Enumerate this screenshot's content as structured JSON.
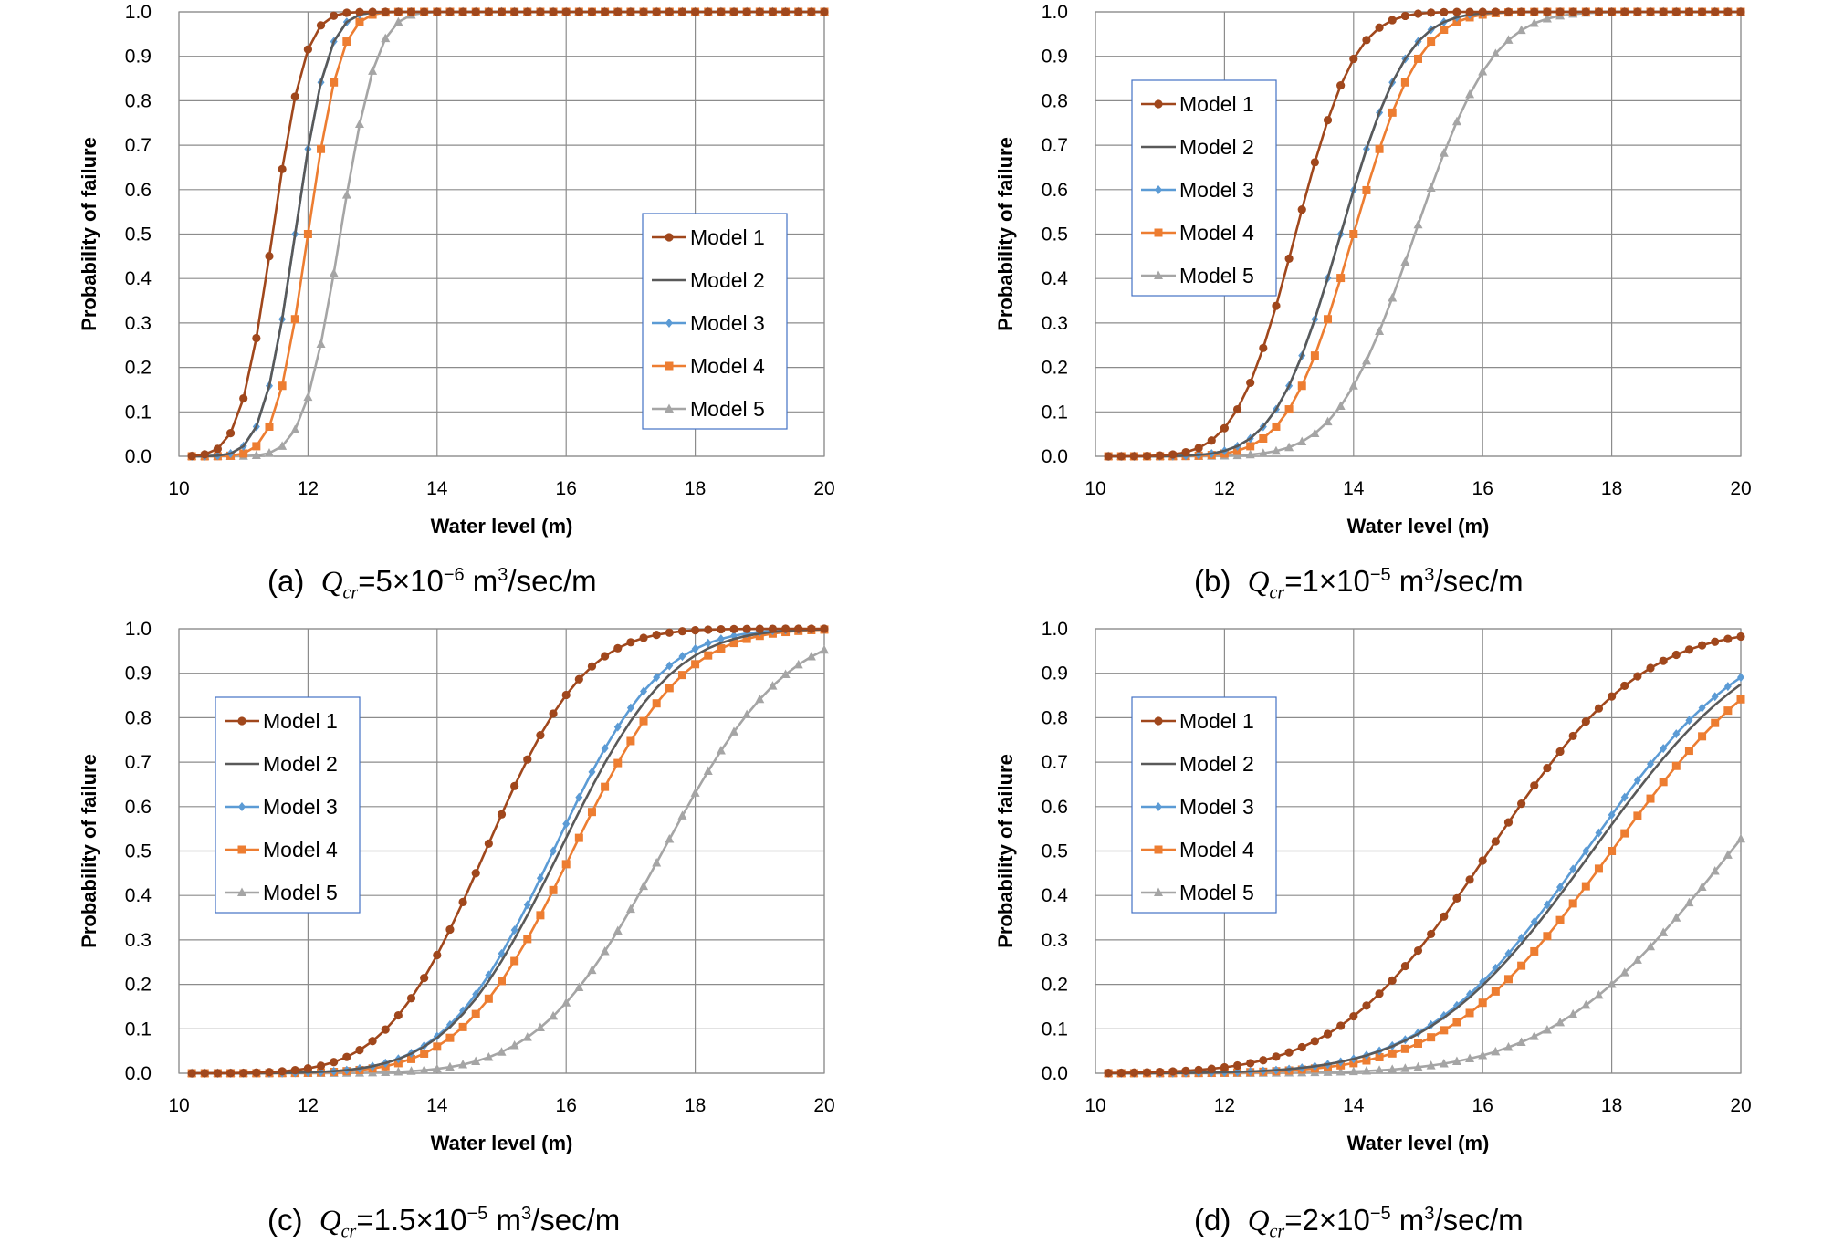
{
  "chart_data": [
    {
      "type": "line",
      "panel": "a",
      "caption": {
        "letter": "(a)",
        "q": "Q",
        "sub": "cr",
        "coef": "=5×10",
        "exp": "−6",
        "unit_base": " m",
        "unit_exp": "3",
        "unit_rest": "/sec/m"
      },
      "xlabel": "Water level (m)",
      "ylabel": "Probability of failure",
      "xlim": [
        10,
        20
      ],
      "ylim": [
        0,
        1
      ],
      "xticks": [
        "10",
        "12",
        "14",
        "16",
        "18",
        "20"
      ],
      "yticks": [
        "0.0",
        "0.1",
        "0.2",
        "0.3",
        "0.4",
        "0.5",
        "0.6",
        "0.7",
        "0.8",
        "0.9",
        "1.0"
      ],
      "grid": true,
      "legend_position": "right-middle",
      "series": [
        {
          "name": "Model 1",
          "color": "#a0471c",
          "marker": "circle",
          "mu": 11.45,
          "sigma": 0.4
        },
        {
          "name": "Model 2",
          "color": "#595959",
          "marker": "none",
          "mu": 11.8,
          "sigma": 0.4
        },
        {
          "name": "Model 3",
          "color": "#5b9bd5",
          "marker": "diamond",
          "mu": 11.8,
          "sigma": 0.4
        },
        {
          "name": "Model 4",
          "color": "#ed7d31",
          "marker": "square",
          "mu": 12.0,
          "sigma": 0.4
        },
        {
          "name": "Model 5",
          "color": "#a5a5a5",
          "marker": "triangle",
          "mu": 12.5,
          "sigma": 0.45
        }
      ]
    },
    {
      "type": "line",
      "panel": "b",
      "caption": {
        "letter": "(b)",
        "q": "Q",
        "sub": "cr",
        "coef": "=1×10",
        "exp": "−5",
        "unit_base": " m",
        "unit_exp": "3",
        "unit_rest": "/sec/m"
      },
      "xlabel": "Water level (m)",
      "ylabel": "Probability of failure",
      "xlim": [
        10,
        20
      ],
      "ylim": [
        0,
        1
      ],
      "xticks": [
        "10",
        "12",
        "14",
        "16",
        "18",
        "20"
      ],
      "yticks": [
        "0.0",
        "0.1",
        "0.2",
        "0.3",
        "0.4",
        "0.5",
        "0.6",
        "0.7",
        "0.8",
        "0.9",
        "1.0"
      ],
      "grid": true,
      "legend_position": "top-left",
      "series": [
        {
          "name": "Model 1",
          "color": "#a0471c",
          "marker": "circle",
          "mu": 13.1,
          "sigma": 0.72
        },
        {
          "name": "Model 2",
          "color": "#595959",
          "marker": "none",
          "mu": 13.8,
          "sigma": 0.8
        },
        {
          "name": "Model 3",
          "color": "#5b9bd5",
          "marker": "diamond",
          "mu": 13.8,
          "sigma": 0.8
        },
        {
          "name": "Model 4",
          "color": "#ed7d31",
          "marker": "square",
          "mu": 14.0,
          "sigma": 0.8
        },
        {
          "name": "Model 5",
          "color": "#a5a5a5",
          "marker": "triangle",
          "mu": 14.95,
          "sigma": 0.95
        }
      ]
    },
    {
      "type": "line",
      "panel": "c",
      "caption": {
        "letter": "(c)",
        "q": "Q",
        "sub": "cr",
        "coef": "=1.5×10",
        "exp": "−5",
        "unit_base": " m",
        "unit_exp": "3",
        "unit_rest": "/sec/m"
      },
      "xlabel": "Water level (m)",
      "ylabel": "Probability of failure",
      "xlim": [
        10,
        20
      ],
      "ylim": [
        0,
        1
      ],
      "xticks": [
        "10",
        "12",
        "14",
        "16",
        "18",
        "20"
      ],
      "yticks": [
        "0.0",
        "0.1",
        "0.2",
        "0.3",
        "0.4",
        "0.5",
        "0.6",
        "0.7",
        "0.8",
        "0.9",
        "1.0"
      ],
      "grid": true,
      "legend_position": "top-left",
      "series": [
        {
          "name": "Model 1",
          "color": "#a0471c",
          "marker": "circle",
          "mu": 14.75,
          "sigma": 1.2
        },
        {
          "name": "Model 2",
          "color": "#595959",
          "marker": "none",
          "mu": 15.9,
          "sigma": 1.35
        },
        {
          "name": "Model 3",
          "color": "#5b9bd5",
          "marker": "diamond",
          "mu": 15.8,
          "sigma": 1.3
        },
        {
          "name": "Model 4",
          "color": "#ed7d31",
          "marker": "square",
          "mu": 16.1,
          "sigma": 1.35
        },
        {
          "name": "Model 5",
          "color": "#a5a5a5",
          "marker": "triangle",
          "mu": 17.5,
          "sigma": 1.5
        }
      ]
    },
    {
      "type": "line",
      "panel": "d",
      "caption": {
        "letter": "(d)",
        "q": "Q",
        "sub": "cr",
        "coef": "=2×10",
        "exp": "−5",
        "unit_base": " m",
        "unit_exp": "3",
        "unit_rest": "/sec/m"
      },
      "xlabel": "Water level (m)",
      "ylabel": "Probability of failure",
      "xlim": [
        10,
        20
      ],
      "ylim": [
        0,
        1
      ],
      "xticks": [
        "10",
        "12",
        "14",
        "16",
        "18",
        "20"
      ],
      "yticks": [
        "0.0",
        "0.1",
        "0.2",
        "0.3",
        "0.4",
        "0.5",
        "0.6",
        "0.7",
        "0.8",
        "0.9",
        "1.0"
      ],
      "grid": true,
      "legend_position": "top-left",
      "series": [
        {
          "name": "Model 1",
          "color": "#a0471c",
          "marker": "circle",
          "mu": 16.1,
          "sigma": 1.85
        },
        {
          "name": "Model 2",
          "color": "#595959",
          "marker": "none",
          "mu": 17.7,
          "sigma": 2.0
        },
        {
          "name": "Model 3",
          "color": "#5b9bd5",
          "marker": "diamond",
          "mu": 17.6,
          "sigma": 1.95
        },
        {
          "name": "Model 4",
          "color": "#ed7d31",
          "marker": "square",
          "mu": 18.0,
          "sigma": 2.0
        },
        {
          "name": "Model 5",
          "color": "#a5a5a5",
          "marker": "triangle",
          "mu": 19.85,
          "sigma": 2.2
        }
      ]
    }
  ]
}
